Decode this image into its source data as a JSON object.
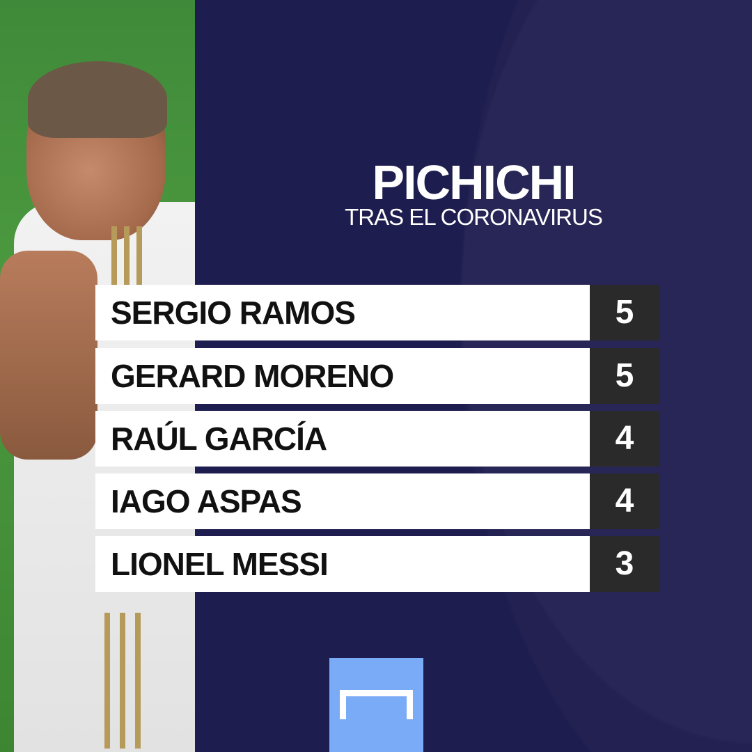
{
  "title": "PICHICHI",
  "subtitle": "TRAS EL CORONAVIRUS",
  "colors": {
    "background": "#1e1d4f",
    "name_cell": "#ffffff",
    "value_cell": "#2a2a2a",
    "logo": "#7aabf7"
  },
  "ranking": [
    {
      "name": "SERGIO RAMOS",
      "goals": "5"
    },
    {
      "name": "GERARD MORENO",
      "goals": "5"
    },
    {
      "name": "RAÚL GARCÍA",
      "goals": "4"
    },
    {
      "name": "IAGO ASPAS",
      "goals": "4"
    },
    {
      "name": "LIONEL MESSI",
      "goals": "3"
    }
  ],
  "logo_icon": "goal-logo-icon"
}
